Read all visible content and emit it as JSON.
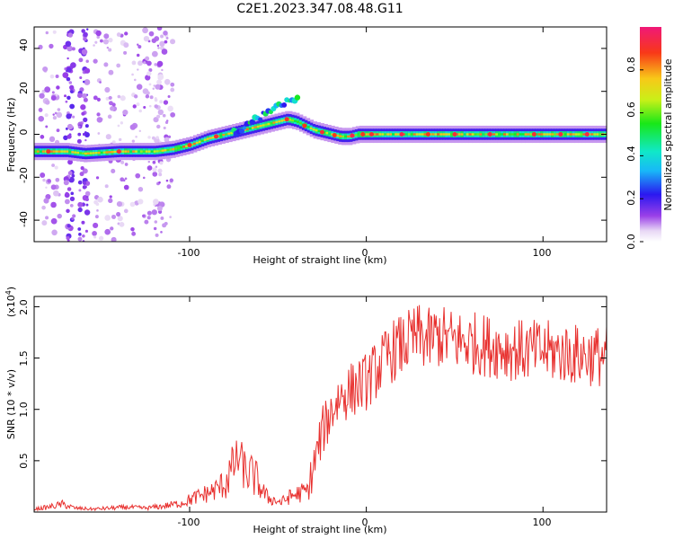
{
  "title": "C2E1.2023.347.08.48.G11",
  "chart_data": [
    {
      "type": "heatmap",
      "xlabel": "Height of straight line (km)",
      "ylabel": "Frequency (Hz)",
      "xlim": [
        -188,
        136
      ],
      "ylim": [
        -50,
        50
      ],
      "xticks": [
        "-100",
        "0",
        "100"
      ],
      "yticks": [
        "40",
        "20",
        "0",
        "-20",
        "-40"
      ],
      "colorbar": {
        "label": "Normalized spectral amplitude",
        "range": [
          0,
          1
        ],
        "ticks": [
          "0.0",
          "0.2",
          "0.4",
          "0.6",
          "0.8"
        ]
      },
      "ridge": {
        "x": [
          -188,
          -170,
          -160,
          -140,
          -120,
          -110,
          -100,
          -90,
          -80,
          -70,
          -60,
          -50,
          -45,
          -40,
          -35,
          -30,
          -20,
          -15,
          -10,
          -5,
          0,
          10,
          20,
          40,
          60,
          80,
          100,
          120,
          136
        ],
        "y": [
          -8,
          -8,
          -9,
          -8,
          -8,
          -7,
          -5,
          -2,
          0,
          2,
          4,
          6,
          7,
          6,
          4,
          2,
          0,
          -1,
          -1,
          0,
          0,
          0,
          0,
          0,
          0,
          0,
          0,
          0,
          0
        ]
      }
    },
    {
      "type": "line",
      "xlabel": "Height of straight line (km)",
      "ylabel": "SNR (10 * v/v)",
      "yunit_label": "(x10",
      "yunit_exp": "4",
      "yunit_close": ")",
      "xlim": [
        -188,
        136
      ],
      "ylim": [
        0,
        2.1
      ],
      "xticks": [
        "-100",
        "0",
        "100"
      ],
      "yticks": [
        "0.5",
        "1.0",
        "1.5",
        "2.0"
      ],
      "series": [
        {
          "color": "#e8312f",
          "x": [
            -188,
            -180,
            -172,
            -165,
            -155,
            -145,
            -135,
            -125,
            -115,
            -105,
            -98,
            -92,
            -86,
            -80,
            -76,
            -72,
            -68,
            -64,
            -60,
            -56,
            -52,
            -48,
            -44,
            -40,
            -36,
            -33,
            -30,
            -25,
            -20,
            -15,
            -10,
            -5,
            0,
            5,
            10,
            15,
            20,
            25,
            30,
            35,
            40,
            45,
            50,
            60,
            70,
            80,
            90,
            100,
            110,
            120,
            130,
            136
          ],
          "y": [
            0.03,
            0.05,
            0.08,
            0.04,
            0.03,
            0.04,
            0.05,
            0.04,
            0.06,
            0.09,
            0.14,
            0.18,
            0.22,
            0.3,
            0.45,
            0.55,
            0.4,
            0.38,
            0.25,
            0.15,
            0.12,
            0.1,
            0.15,
            0.18,
            0.2,
            0.22,
            0.45,
            0.8,
            1.0,
            1.15,
            1.2,
            1.25,
            1.3,
            1.4,
            1.5,
            1.6,
            1.65,
            1.7,
            1.75,
            1.7,
            1.75,
            1.72,
            1.7,
            1.68,
            1.65,
            1.62,
            1.6,
            1.6,
            1.58,
            1.56,
            1.55,
            1.55
          ]
        }
      ]
    }
  ]
}
